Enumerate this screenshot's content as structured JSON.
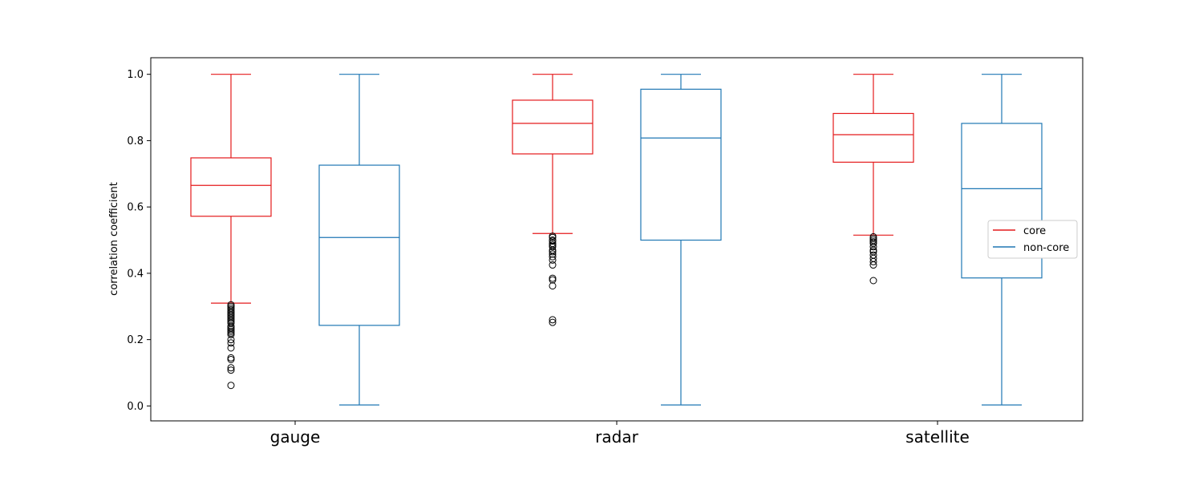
{
  "chart_data": {
    "type": "box",
    "ylabel": "correlation coefficient",
    "ylim": [
      -0.045,
      1.05
    ],
    "yticks": [
      0.0,
      0.2,
      0.4,
      0.6,
      0.8,
      1.0
    ],
    "ytick_labels": [
      "0.0",
      "0.2",
      "0.4",
      "0.6",
      "0.8",
      "1.0"
    ],
    "categories": [
      "gauge",
      "radar",
      "satellite"
    ],
    "legend": {
      "position": "center-right"
    },
    "series": [
      {
        "name": "core",
        "color": "#e41a1c",
        "boxes": [
          {
            "whisker_low": 0.31,
            "q1": 0.572,
            "median": 0.665,
            "q3": 0.748,
            "whisker_high": 1.0,
            "outliers": [
              0.305,
              0.3,
              0.295,
              0.29,
              0.285,
              0.28,
              0.275,
              0.27,
              0.265,
              0.26,
              0.255,
              0.25,
              0.24,
              0.235,
              0.23,
              0.225,
              0.22,
              0.215,
              0.2,
              0.19,
              0.175,
              0.145,
              0.14,
              0.115,
              0.108,
              0.062
            ]
          },
          {
            "whisker_low": 0.52,
            "q1": 0.76,
            "median": 0.852,
            "q3": 0.922,
            "whisker_high": 1.0,
            "outliers": [
              0.512,
              0.508,
              0.5,
              0.497,
              0.49,
              0.485,
              0.48,
              0.47,
              0.465,
              0.458,
              0.45,
              0.44,
              0.425,
              0.385,
              0.38,
              0.362,
              0.26,
              0.252
            ]
          },
          {
            "whisker_low": 0.515,
            "q1": 0.735,
            "median": 0.818,
            "q3": 0.882,
            "whisker_high": 1.0,
            "outliers": [
              0.51,
              0.505,
              0.5,
              0.495,
              0.49,
              0.48,
              0.47,
              0.465,
              0.455,
              0.445,
              0.435,
              0.425,
              0.378
            ]
          }
        ]
      },
      {
        "name": "non-core",
        "color": "#1f77b4",
        "boxes": [
          {
            "whisker_low": 0.003,
            "q1": 0.243,
            "median": 0.508,
            "q3": 0.726,
            "whisker_high": 1.0,
            "outliers": []
          },
          {
            "whisker_low": 0.003,
            "q1": 0.5,
            "median": 0.808,
            "q3": 0.955,
            "whisker_high": 1.0,
            "outliers": []
          },
          {
            "whisker_low": 0.003,
            "q1": 0.386,
            "median": 0.655,
            "q3": 0.852,
            "whisker_high": 1.0,
            "outliers": []
          }
        ]
      }
    ]
  }
}
